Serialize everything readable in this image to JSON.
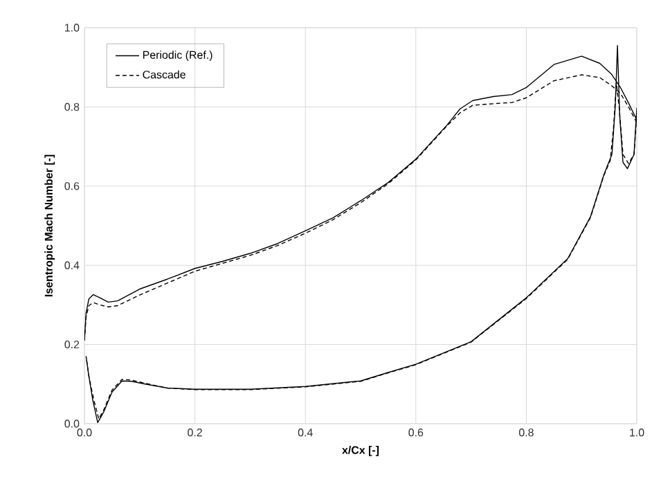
{
  "chart_data": {
    "type": "line",
    "xlabel": "x/Cx [-]",
    "ylabel": "Isentropic Mach Number [-]",
    "xlim": [
      0,
      1
    ],
    "ylim": [
      0,
      1
    ],
    "xticks": [
      {
        "value": 0,
        "label": "0.0"
      },
      {
        "value": 0.2,
        "label": "0.2"
      },
      {
        "value": 0.4,
        "label": "0.4"
      },
      {
        "value": 0.6,
        "label": "0.6"
      },
      {
        "value": 0.8,
        "label": "0.8"
      },
      {
        "value": 1,
        "label": "1.0"
      }
    ],
    "yticks": [
      {
        "value": 0,
        "label": "0.0"
      },
      {
        "value": 0.2,
        "label": "0.2"
      },
      {
        "value": 0.4,
        "label": "0.4"
      },
      {
        "value": 0.6,
        "label": "0.6"
      },
      {
        "value": 0.8,
        "label": "0.8"
      },
      {
        "value": 1,
        "label": "1.0"
      }
    ],
    "grid": true,
    "legend": "top left",
    "series": [
      {
        "name": "Periodic (Ref.)",
        "color": "#000000",
        "line_style": "solid",
        "x": [
          0,
          0.003,
          0.008,
          0.016,
          0.028,
          0.043,
          0.06,
          0.1,
          0.15,
          0.2,
          0.25,
          0.3,
          0.35,
          0.4,
          0.45,
          0.5,
          0.55,
          0.6,
          0.657,
          0.68,
          0.703,
          0.74,
          0.774,
          0.8,
          0.85,
          0.9,
          0.933,
          0.954,
          0.97,
          0.985,
          1.0,
          1.0,
          0.995,
          0.983,
          0.975,
          0.969,
          0.965,
          0.961,
          0.955,
          0.94,
          0.916,
          0.875,
          0.8,
          0.7,
          0.6,
          0.549,
          0.5,
          0.4,
          0.3,
          0.2,
          0.15,
          0.11,
          0.085,
          0.068,
          0.05,
          0.035,
          0.024,
          0.015,
          0.008,
          0.003
        ],
        "values": [
          0.21,
          0.28,
          0.315,
          0.326,
          0.318,
          0.307,
          0.31,
          0.34,
          0.365,
          0.392,
          0.41,
          0.43,
          0.455,
          0.487,
          0.52,
          0.563,
          0.609,
          0.668,
          0.755,
          0.795,
          0.816,
          0.826,
          0.831,
          0.849,
          0.907,
          0.928,
          0.91,
          0.883,
          0.85,
          0.81,
          0.767,
          0.797,
          0.68,
          0.644,
          0.66,
          0.78,
          0.955,
          0.8,
          0.68,
          0.627,
          0.522,
          0.417,
          0.318,
          0.207,
          0.15,
          0.129,
          0.108,
          0.094,
          0.087,
          0.087,
          0.09,
          0.1,
          0.107,
          0.108,
          0.08,
          0.03,
          0.003,
          0.06,
          0.12,
          0.17
        ]
      },
      {
        "name": "Cascade",
        "color": "#000000",
        "line_style": "dashed",
        "x": [
          0,
          0.003,
          0.008,
          0.016,
          0.028,
          0.043,
          0.06,
          0.1,
          0.15,
          0.2,
          0.25,
          0.3,
          0.35,
          0.4,
          0.45,
          0.5,
          0.55,
          0.6,
          0.657,
          0.68,
          0.703,
          0.74,
          0.774,
          0.8,
          0.85,
          0.9,
          0.933,
          0.954,
          0.97,
          0.985,
          1.0,
          1.0,
          0.995,
          0.985,
          0.975,
          0.968,
          0.963,
          0.958,
          0.952,
          0.94,
          0.916,
          0.875,
          0.8,
          0.7,
          0.6,
          0.549,
          0.5,
          0.4,
          0.3,
          0.2,
          0.15,
          0.11,
          0.085,
          0.068,
          0.05,
          0.035,
          0.026,
          0.017,
          0.008,
          0.003
        ],
        "values": [
          0.21,
          0.27,
          0.298,
          0.306,
          0.3,
          0.295,
          0.298,
          0.325,
          0.355,
          0.385,
          0.405,
          0.425,
          0.45,
          0.481,
          0.515,
          0.558,
          0.606,
          0.666,
          0.753,
          0.785,
          0.804,
          0.808,
          0.811,
          0.823,
          0.866,
          0.881,
          0.874,
          0.854,
          0.835,
          0.8,
          0.76,
          0.78,
          0.68,
          0.657,
          0.68,
          0.8,
          0.86,
          0.75,
          0.665,
          0.625,
          0.52,
          0.415,
          0.316,
          0.206,
          0.149,
          0.128,
          0.107,
          0.093,
          0.086,
          0.086,
          0.09,
          0.102,
          0.11,
          0.112,
          0.085,
          0.035,
          0.012,
          0.06,
          0.12,
          0.17
        ]
      }
    ]
  }
}
